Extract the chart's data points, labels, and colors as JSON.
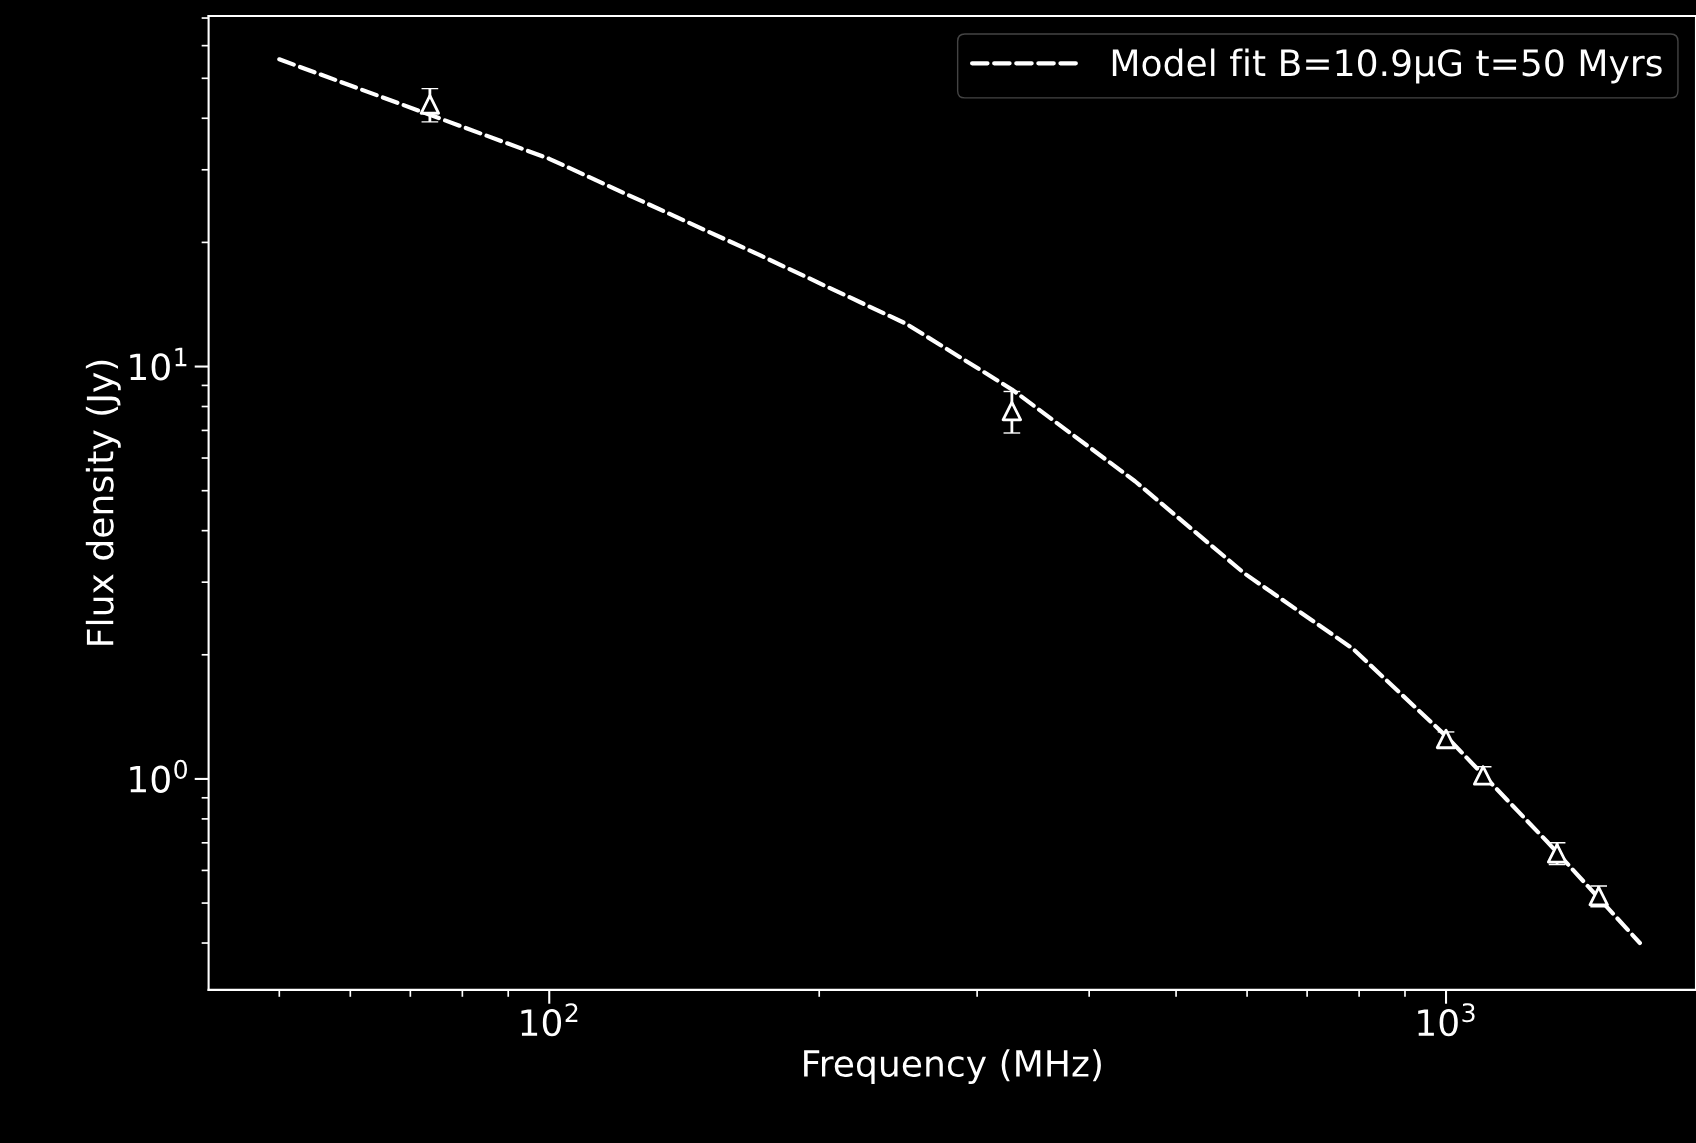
{
  "chart_data": {
    "type": "scatter",
    "xlabel": "Frequency (MHz)",
    "ylabel": "Flux density (Jy)",
    "log": "xy",
    "xlim": [
      41.7,
      1900
    ],
    "ylim": [
      0.308,
      70.8
    ],
    "xticks": [
      {
        "value": 100,
        "label": "10$^{2}$"
      },
      {
        "value": 1000,
        "label": "10$^{3}$"
      }
    ],
    "yticks": [
      {
        "value": 1,
        "label": "10$^{0}$"
      },
      {
        "value": 10,
        "label": "10$^{1}$"
      }
    ],
    "legend": "top right",
    "grid": false,
    "series": [
      {
        "type": "line",
        "name": "Model fit B=10.9μG t=50 Myrs",
        "color": "#ffffff",
        "line_style": "dashed",
        "marker": "none",
        "x": [
          50,
          100,
          171,
          250,
          328,
          450,
          596,
          787,
          1000,
          1300,
          1645
        ],
        "values": [
          55.6,
          31.9,
          18.7,
          12.7,
          8.8,
          5.27,
          3.15,
          2.07,
          1.27,
          0.7,
          0.4
        ]
      },
      {
        "color": "#ffffff",
        "marker": "triangle",
        "x": [
          73.6,
          328,
          1000,
          1100,
          1330,
          1480
        ],
        "values": [
          43.2,
          7.8,
          1.25,
          1.02,
          0.66,
          0.52
        ],
        "errors": [
          4,
          0.9,
          0.05,
          0.05,
          0.04,
          0.03
        ]
      }
    ]
  }
}
